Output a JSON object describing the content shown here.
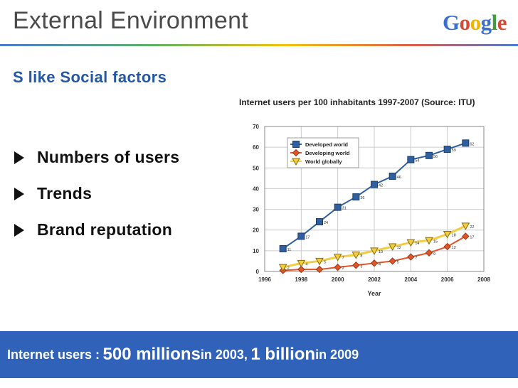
{
  "slide": {
    "title": "External Environment",
    "logo": [
      "G",
      "o",
      "o",
      "g",
      "l",
      "e"
    ],
    "subtitle": "S like Social factors",
    "bullets": [
      "Numbers of users",
      "Trends",
      "Brand reputation"
    ],
    "footer": {
      "part1": "Internet users : ",
      "part2": "500 millions",
      "part3": " in 2003, ",
      "part4": "1 billion",
      "part5": " in 2009"
    }
  },
  "colors": {
    "title": "#4a4a4a",
    "subtitle": "#2457a5",
    "footer_bg": "#2f62b8",
    "logo": [
      "#3b6fd1",
      "#d84a38",
      "#f0b400",
      "#3b6fd1",
      "#3f9d3f",
      "#d84a38"
    ]
  },
  "chart_data": {
    "type": "line",
    "title": "Internet users per 100 inhabitants 1997-2007 (Source: ITU)",
    "xlabel": "Year",
    "ylabel": "",
    "xlim": [
      1996,
      2008
    ],
    "ylim": [
      0,
      70
    ],
    "xticks": [
      1996,
      1998,
      2000,
      2002,
      2004,
      2006,
      2008
    ],
    "yticks": [
      0,
      10,
      20,
      30,
      40,
      50,
      60,
      70
    ],
    "grid": true,
    "legend": "top-left",
    "x": [
      1997,
      1998,
      1999,
      2000,
      2001,
      2002,
      2003,
      2004,
      2005,
      2006,
      2007
    ],
    "series": [
      {
        "name": "Developed world",
        "color": "#2f5f9f",
        "marker": "square",
        "values": [
          11,
          17,
          24,
          31,
          36,
          42,
          46,
          54,
          56,
          59,
          62
        ],
        "labels": [
          "11",
          "17",
          "24",
          "31",
          "36",
          "42",
          "46",
          "54",
          "56",
          "59",
          "62"
        ]
      },
      {
        "name": "Developing world",
        "color": "#e0562a",
        "marker": "diamond",
        "values": [
          0.5,
          1,
          1,
          2,
          3,
          4,
          5,
          7,
          9,
          12,
          17
        ],
        "labels": [
          "",
          "",
          "",
          "2",
          "3",
          "4",
          "5",
          "7",
          "9",
          "12",
          "17"
        ]
      },
      {
        "name": "World globally",
        "color": "#f2cd41",
        "marker": "triangle",
        "values": [
          2,
          4,
          5,
          7,
          8,
          10,
          12,
          14,
          15,
          18,
          22
        ],
        "labels": [
          "2",
          "4",
          "5",
          "7",
          "8",
          "10",
          "12",
          "14",
          "15",
          "18",
          "22"
        ]
      }
    ]
  }
}
